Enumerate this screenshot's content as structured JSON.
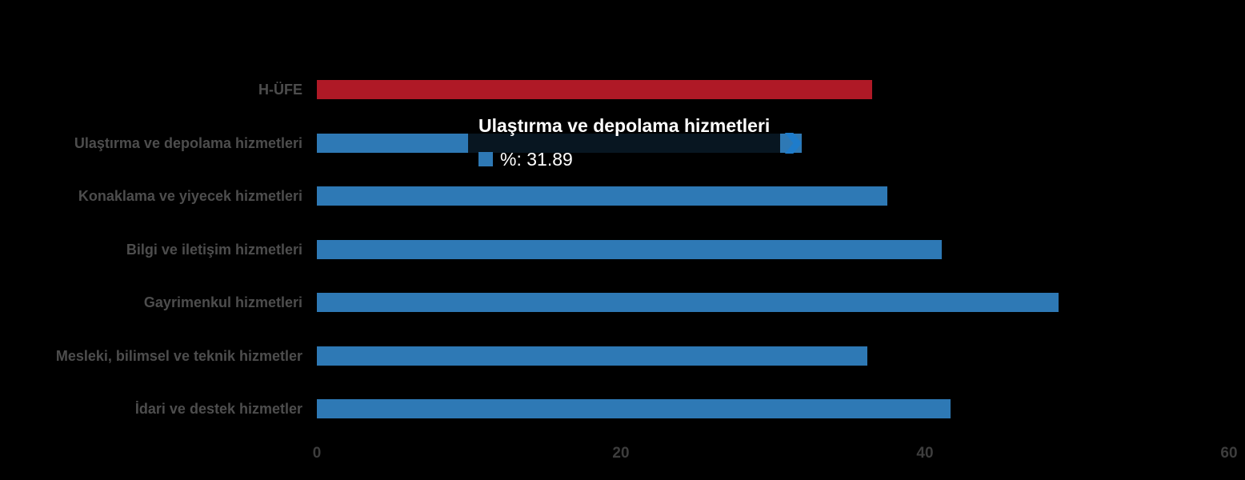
{
  "colors": {
    "background": "#000000",
    "category_label_text": "#4d4d4d",
    "axis_tick_text": "#3d3d3d",
    "default_bar": "#2E79B5",
    "hufe_bar": "#AF1926",
    "tooltip_background": "rgba(0,0,0,0.82)",
    "tooltip_text": "#ffffff",
    "chevron_blue": "#1E7CCB"
  },
  "chart_data": {
    "type": "bar",
    "orientation": "horizontal",
    "title": "",
    "xlabel": "",
    "ylabel": "",
    "xlim": [
      0,
      60
    ],
    "x_ticks": [
      "0",
      "20",
      "40",
      "60"
    ],
    "x_tick_values": [
      0,
      20,
      40,
      60
    ],
    "grid": false,
    "legend_position": "none",
    "categories": [
      "H-ÜFE",
      "Ulaştırma ve depolama hizmetleri",
      "Konaklama ve yiyecek hizmetleri",
      "Bilgi ve iletişim hizmetleri",
      "Gayrimenkul hizmetleri",
      "Mesleki, bilimsel ve teknik hizmetler",
      "İdari ve destek hizmetler"
    ],
    "series": [
      {
        "name": "%",
        "values": [
          36.5,
          31.89,
          37.5,
          41.1,
          48.8,
          36.2,
          41.7
        ]
      }
    ],
    "bar_colors": [
      "#AF1926",
      "#2E79B5",
      "#2E79B5",
      "#2E79B5",
      "#2E79B5",
      "#2E79B5",
      "#2E79B5"
    ]
  },
  "tooltip": {
    "title": "Ulaştırma ve depolama hizmetleri",
    "series_label": "%",
    "value": "31.89",
    "text": "%: 31.89",
    "marker_color": "#2E79B5",
    "target_category_index": 1
  }
}
